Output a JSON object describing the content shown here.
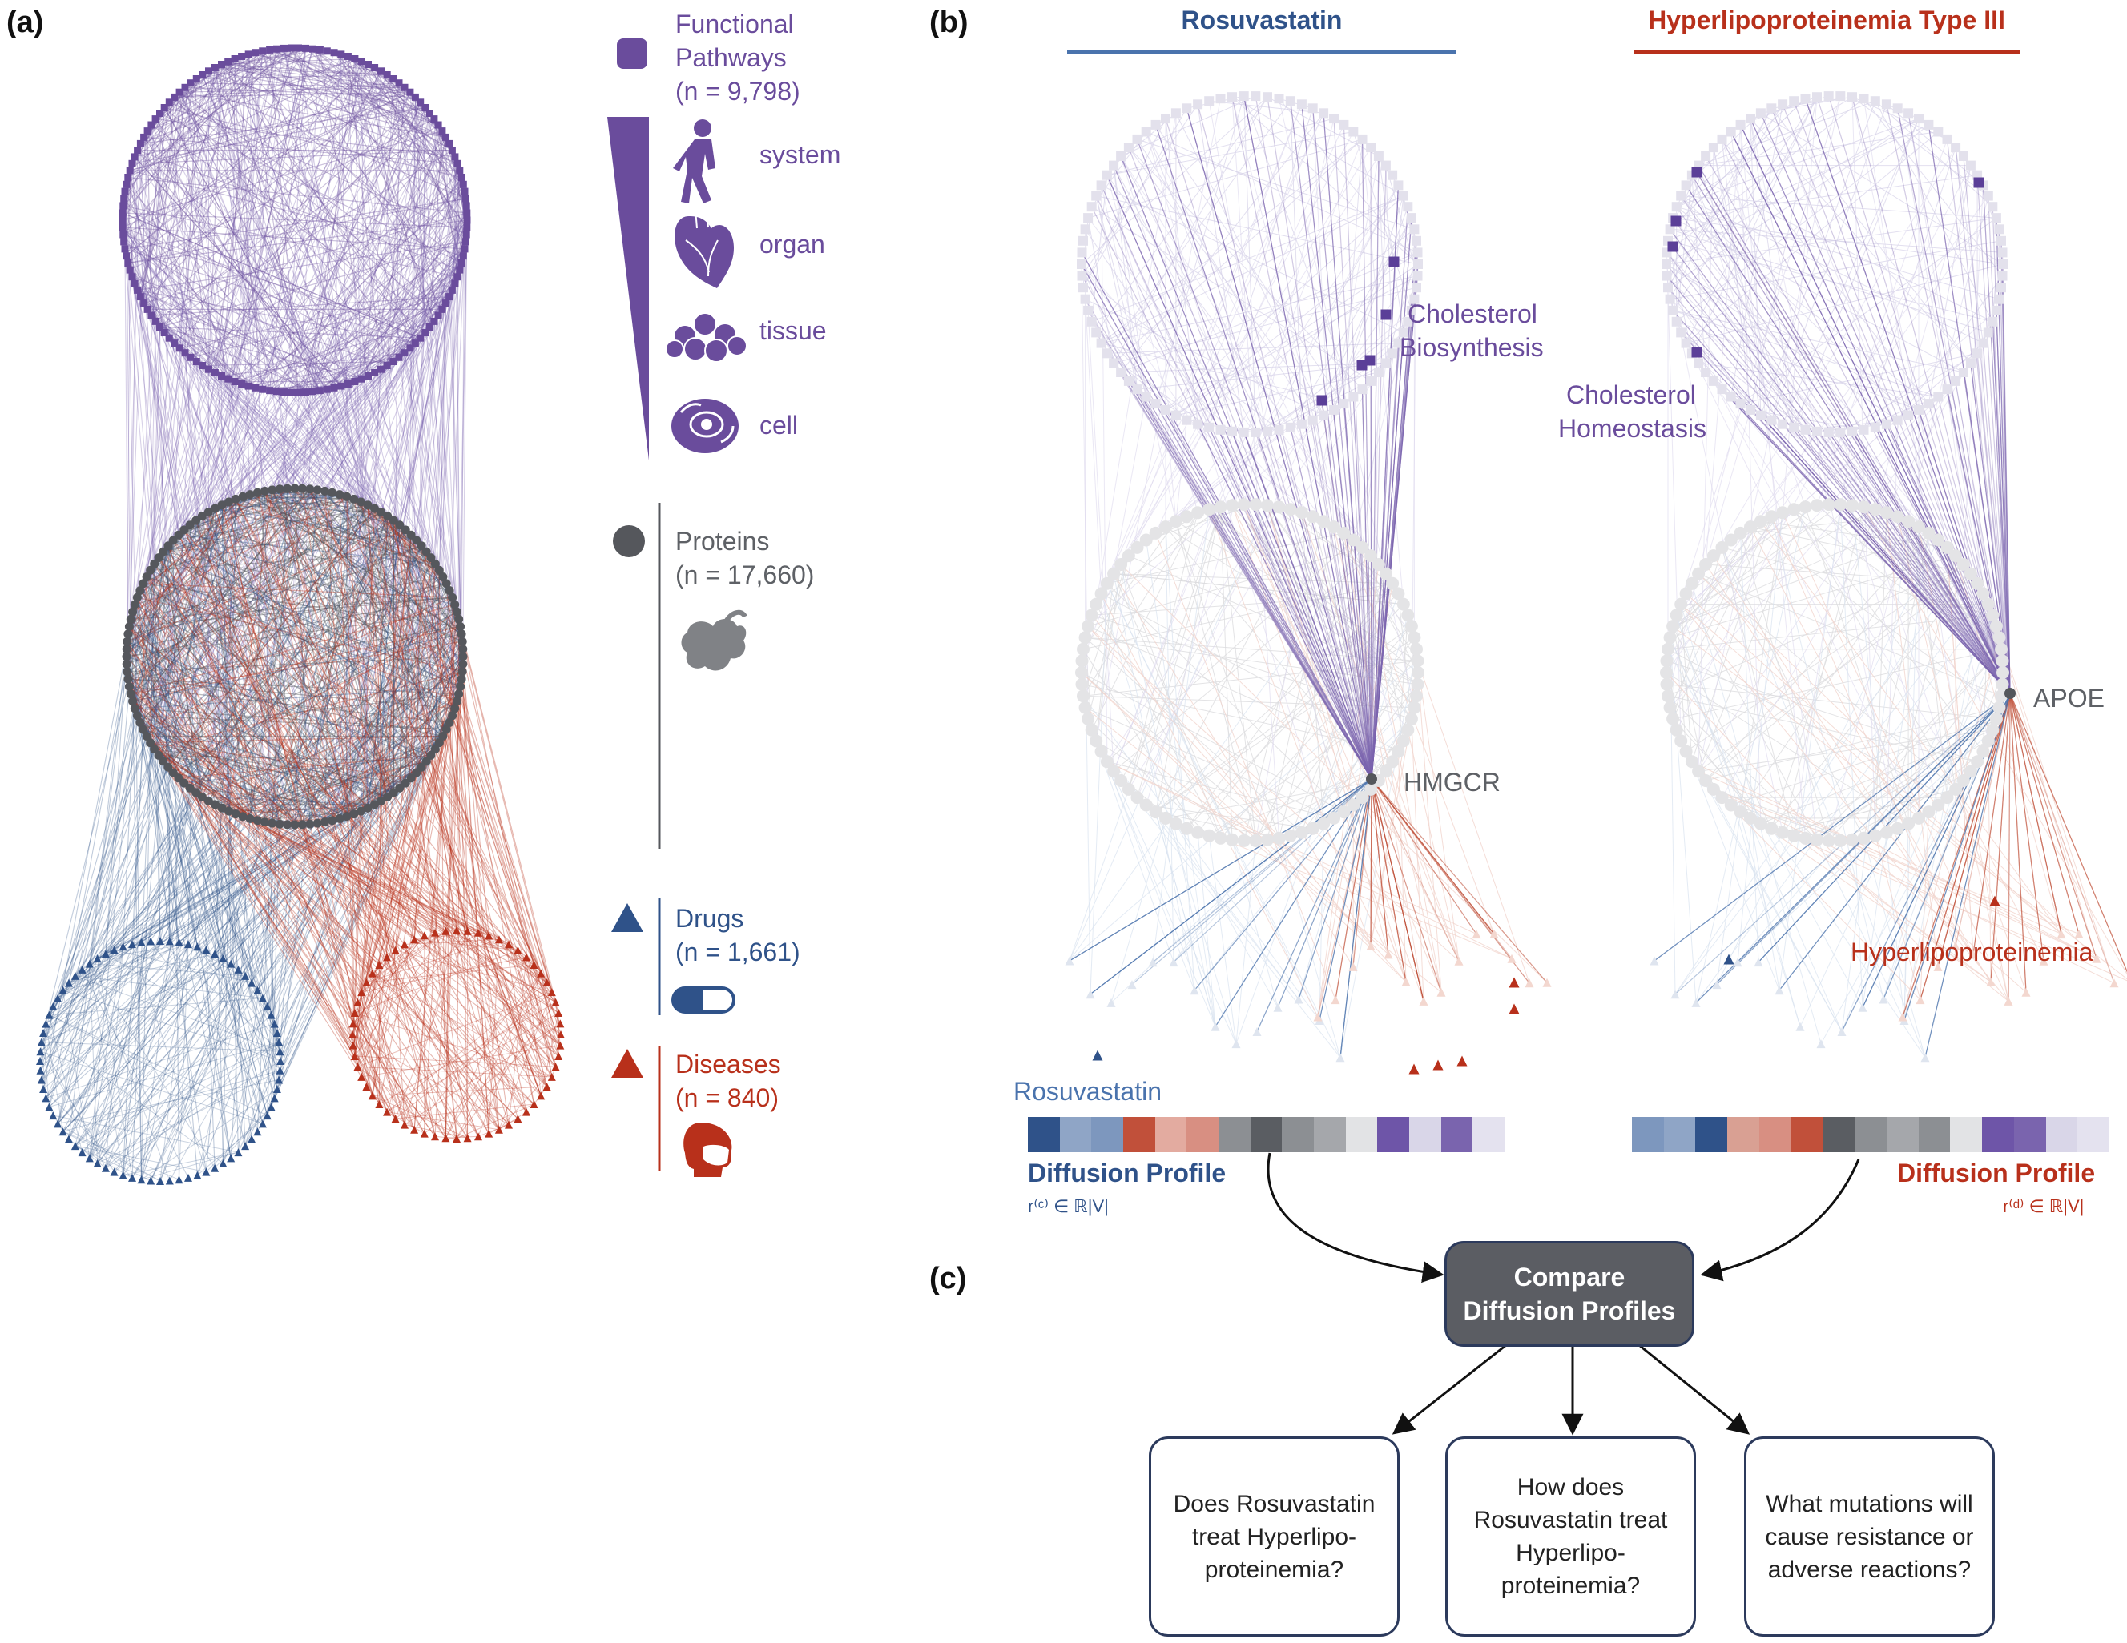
{
  "panels": {
    "a": "(a)",
    "b": "(b)",
    "c": "(c)"
  },
  "legend": {
    "pathways": {
      "title1": "Functional",
      "title2": "Pathways",
      "count": "(n = 9,798)",
      "levels": [
        "system",
        "organ",
        "tissue",
        "cell"
      ],
      "color": "#6a4c9c"
    },
    "proteins": {
      "title": "Proteins",
      "count": "(n = 17,660)",
      "color": "#55575c"
    },
    "drugs": {
      "title": "Drugs",
      "count": "(n = 1,661)",
      "color": "#2f5289"
    },
    "diseases": {
      "title": "Diseases",
      "count": "(n = 840)",
      "color": "#b8301b"
    }
  },
  "drug_panel": {
    "heading": "Rosuvastatin",
    "pathway_label1": "Cholesterol",
    "pathway_label2": "Biosynthesis",
    "protein_label": "HMGCR",
    "node_label": "Rosuvastatin",
    "profile_title": "Diffusion Profile",
    "profile_symbol": "r⁽ᶜ⁾ ∈ ℝ|V|",
    "profile_colors": [
      "#2f5289",
      "#8fa5c6",
      "#7d97be",
      "#c1503a",
      "#e3aba0",
      "#d88f82",
      "#8c8f93",
      "#5a5d62",
      "#8c8f93",
      "#a5a7ab",
      "#e2e3e5",
      "#6e55a8",
      "#d9d6e8",
      "#7a64ae",
      "#e4e2ef"
    ]
  },
  "disease_panel": {
    "heading": "Hyperlipoproteinemia Type III",
    "pathway_label1": "Cholesterol",
    "pathway_label2": "Homeostasis",
    "protein_label": "APOE",
    "node_label": "Hyperlipoproteinemia",
    "profile_title": "Diffusion Profile",
    "profile_symbol": "r⁽ᵈ⁾ ∈ ℝ|V|",
    "profile_colors": [
      "#7d97be",
      "#8fa5c6",
      "#2f5289",
      "#d9a093",
      "#d88f82",
      "#c1503a",
      "#5a5d62",
      "#8c8f93",
      "#a5a7ab",
      "#8c8f93",
      "#e2e3e5",
      "#6e55a8",
      "#7a64ae",
      "#d9d6e8",
      "#e4e2ef"
    ]
  },
  "compare": {
    "line1": "Compare",
    "line2": "Diffusion Profiles"
  },
  "questions": [
    "Does Rosuvastatin\ntreat Hyperlipo-\nproteinemia?",
    "How does\nRosuvastatin treat\nHyperlipo-\nproteinemia?",
    "What mutations will\ncause resistance or\nadverse reactions?"
  ]
}
